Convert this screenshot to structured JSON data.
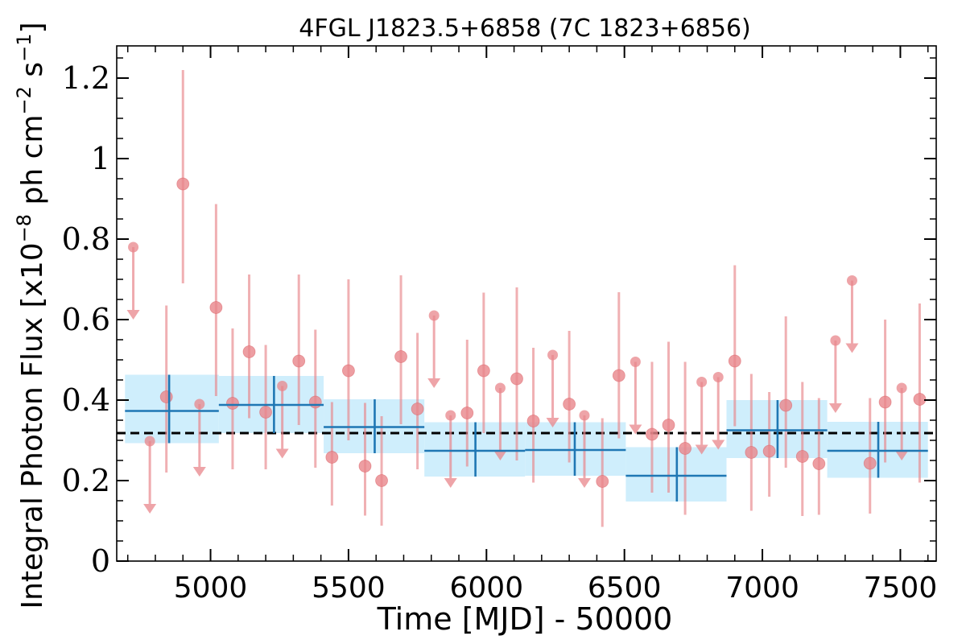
{
  "chart_data": {
    "type": "scatter",
    "title": "4FGL J1823.5+6858 (7C 1823+6856)",
    "xlabel": "Time [MJD] - 50000",
    "ylabel": "Integral Photon Flux [x10^-8 ph cm^-2 s^-1]",
    "xlim": [
      4660,
      7630
    ],
    "ylim": [
      0,
      1.28
    ],
    "x_ticks": [
      "5000",
      "5500",
      "6000",
      "6500",
      "7000",
      "7500"
    ],
    "y_ticks": [
      "0",
      "0.2",
      "0.4",
      "0.6",
      "0.8",
      "1",
      "1.2"
    ],
    "reference_flux": 0.318,
    "colors": {
      "short_bins": "#e8868b",
      "long_bins": "#1f77b4",
      "long_band": "#cfeefc",
      "reference": "#000000"
    },
    "series": [
      {
        "kind": "long_bins",
        "points": [
          {
            "x": 4850,
            "x0": 4690,
            "x1": 5030,
            "y": 0.373,
            "ylo": 0.293,
            "yhi": 0.463
          },
          {
            "x": 5230,
            "x0": 5030,
            "x1": 5410,
            "y": 0.388,
            "ylo": 0.318,
            "yhi": 0.46
          },
          {
            "x": 5595,
            "x0": 5410,
            "x1": 5775,
            "y": 0.333,
            "ylo": 0.268,
            "yhi": 0.402
          },
          {
            "x": 5960,
            "x0": 5775,
            "x1": 6140,
            "y": 0.274,
            "ylo": 0.21,
            "yhi": 0.345
          },
          {
            "x": 6320,
            "x0": 6140,
            "x1": 6505,
            "y": 0.276,
            "ylo": 0.212,
            "yhi": 0.345
          },
          {
            "x": 6690,
            "x0": 6505,
            "x1": 6870,
            "y": 0.212,
            "ylo": 0.148,
            "yhi": 0.283
          },
          {
            "x": 7055,
            "x0": 6870,
            "x1": 7235,
            "y": 0.325,
            "ylo": 0.256,
            "yhi": 0.4
          },
          {
            "x": 7420,
            "x0": 7235,
            "x1": 7600,
            "y": 0.274,
            "ylo": 0.207,
            "yhi": 0.346
          }
        ]
      },
      {
        "kind": "short_bins",
        "points": [
          {
            "x": 4720,
            "y": 0.78,
            "ul": true
          },
          {
            "x": 4780,
            "y": 0.298,
            "ul": true
          },
          {
            "x": 4840,
            "y": 0.408,
            "ylo": 0.22,
            "yhi": 0.635
          },
          {
            "x": 4900,
            "y": 0.937,
            "ylo": 0.69,
            "yhi": 1.22
          },
          {
            "x": 4960,
            "y": 0.39,
            "ul": true
          },
          {
            "x": 5020,
            "y": 0.63,
            "ylo": 0.41,
            "yhi": 0.887
          },
          {
            "x": 5080,
            "y": 0.392,
            "ylo": 0.228,
            "yhi": 0.578
          },
          {
            "x": 5140,
            "y": 0.52,
            "ylo": 0.355,
            "yhi": 0.712
          },
          {
            "x": 5200,
            "y": 0.37,
            "ylo": 0.228,
            "yhi": 0.537
          },
          {
            "x": 5260,
            "y": 0.435,
            "ul": true
          },
          {
            "x": 5320,
            "y": 0.497,
            "ylo": 0.338,
            "yhi": 0.712
          },
          {
            "x": 5380,
            "y": 0.395,
            "ylo": 0.232,
            "yhi": 0.575
          },
          {
            "x": 5440,
            "y": 0.258,
            "ylo": 0.138,
            "yhi": 0.395
          },
          {
            "x": 5500,
            "y": 0.473,
            "ylo": 0.3,
            "yhi": 0.7
          },
          {
            "x": 5560,
            "y": 0.236,
            "ylo": 0.113,
            "yhi": 0.393
          },
          {
            "x": 5620,
            "y": 0.2,
            "ylo": 0.088,
            "yhi": 0.36
          },
          {
            "x": 5690,
            "y": 0.508,
            "ylo": 0.34,
            "yhi": 0.71
          },
          {
            "x": 5750,
            "y": 0.378,
            "ylo": 0.228,
            "yhi": 0.567
          },
          {
            "x": 5810,
            "y": 0.61,
            "ul": true
          },
          {
            "x": 5870,
            "y": 0.362,
            "ul": true
          },
          {
            "x": 5930,
            "y": 0.368,
            "ylo": 0.235,
            "yhi": 0.55
          },
          {
            "x": 5990,
            "y": 0.473,
            "ylo": 0.318,
            "yhi": 0.667
          },
          {
            "x": 6050,
            "y": 0.43,
            "ul": true
          },
          {
            "x": 6110,
            "y": 0.453,
            "ylo": 0.25,
            "yhi": 0.68
          },
          {
            "x": 6170,
            "y": 0.348,
            "ylo": 0.195,
            "yhi": 0.53
          },
          {
            "x": 6240,
            "y": 0.512,
            "ul": true
          },
          {
            "x": 6300,
            "y": 0.39,
            "ylo": 0.245,
            "yhi": 0.572
          },
          {
            "x": 6355,
            "y": 0.362,
            "ul": true
          },
          {
            "x": 6420,
            "y": 0.198,
            "ylo": 0.085,
            "yhi": 0.355
          },
          {
            "x": 6480,
            "y": 0.461,
            "ylo": 0.305,
            "yhi": 0.668
          },
          {
            "x": 6540,
            "y": 0.495,
            "ul": true
          },
          {
            "x": 6600,
            "y": 0.315,
            "ylo": 0.17,
            "yhi": 0.495
          },
          {
            "x": 6660,
            "y": 0.338,
            "ylo": 0.17,
            "yhi": 0.545
          },
          {
            "x": 6720,
            "y": 0.28,
            "ylo": 0.115,
            "yhi": 0.495
          },
          {
            "x": 6780,
            "y": 0.445,
            "ul": true
          },
          {
            "x": 6840,
            "y": 0.457,
            "ul": true
          },
          {
            "x": 6900,
            "y": 0.497,
            "ylo": 0.335,
            "yhi": 0.735
          },
          {
            "x": 6960,
            "y": 0.27,
            "ylo": 0.125,
            "yhi": 0.465
          },
          {
            "x": 7025,
            "y": 0.273,
            "ylo": 0.16,
            "yhi": 0.42
          },
          {
            "x": 7085,
            "y": 0.387,
            "ylo": 0.232,
            "yhi": 0.608
          },
          {
            "x": 7145,
            "y": 0.26,
            "ylo": 0.112,
            "yhi": 0.445
          },
          {
            "x": 7205,
            "y": 0.242,
            "ylo": 0.115,
            "yhi": 0.405
          },
          {
            "x": 7265,
            "y": 0.548,
            "ul": true
          },
          {
            "x": 7325,
            "y": 0.697,
            "ul": true
          },
          {
            "x": 7390,
            "y": 0.243,
            "ylo": 0.118,
            "yhi": 0.405
          },
          {
            "x": 7445,
            "y": 0.395,
            "ylo": 0.245,
            "yhi": 0.6
          },
          {
            "x": 7505,
            "y": 0.43,
            "ul": true
          },
          {
            "x": 7570,
            "y": 0.402,
            "ylo": 0.195,
            "yhi": 0.64
          }
        ]
      }
    ]
  }
}
